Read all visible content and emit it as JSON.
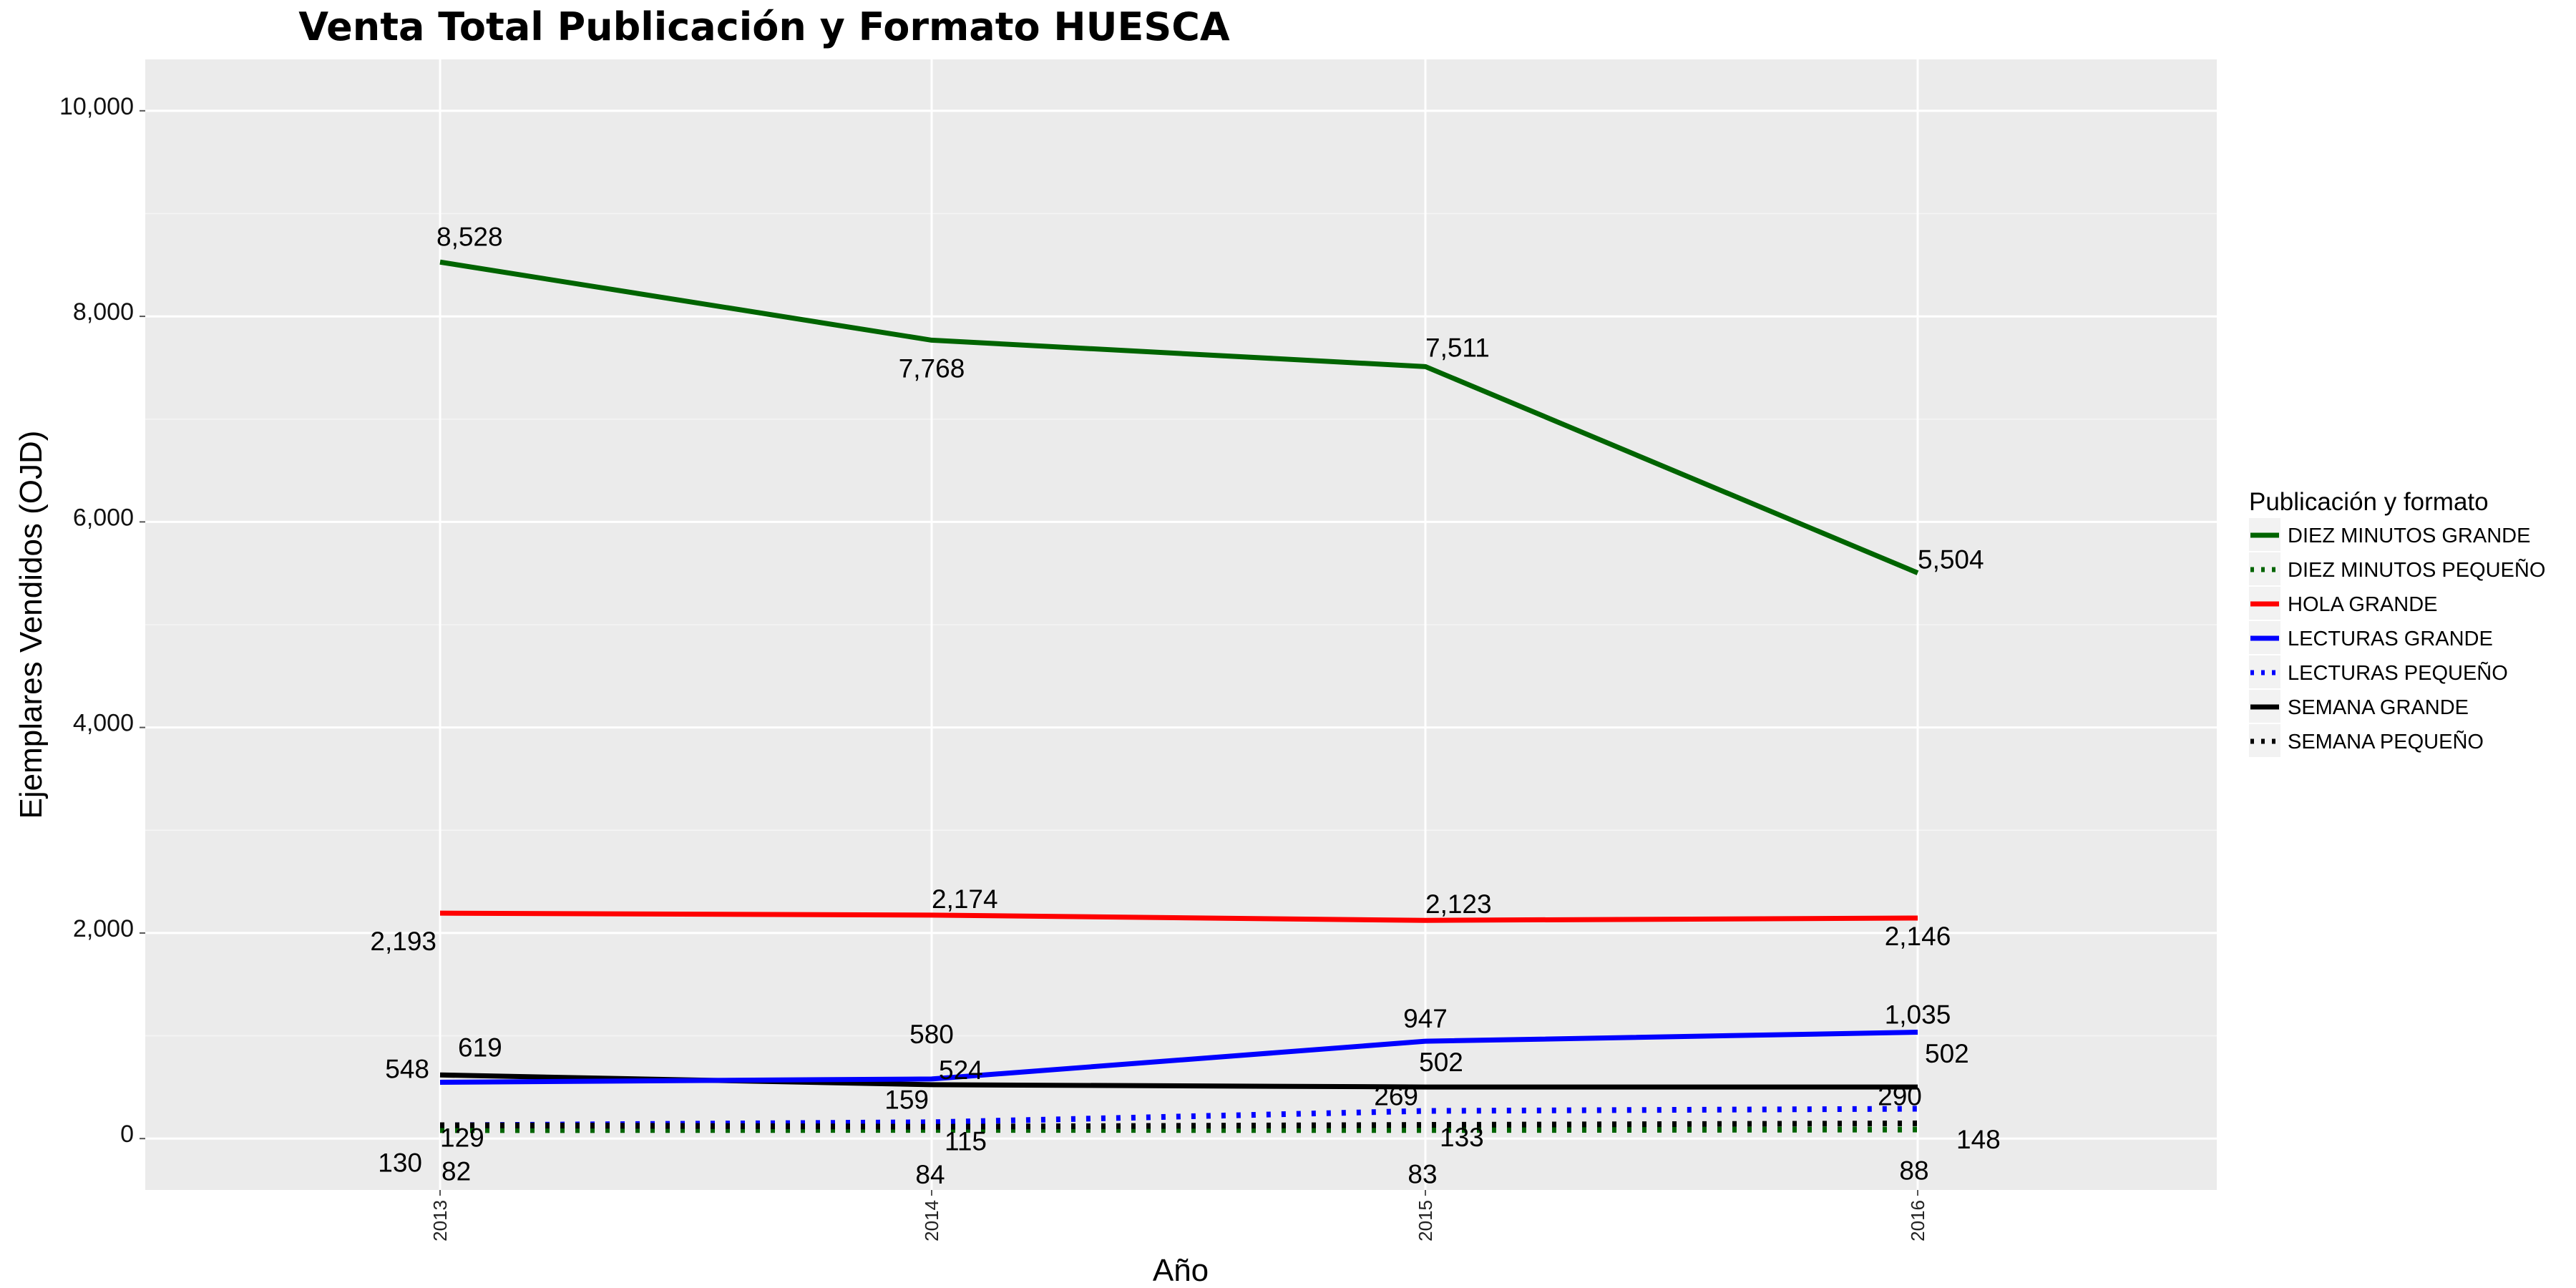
{
  "chart_data": {
    "type": "line",
    "title": "Venta Total Publicación y Formato  HUESCA",
    "xlabel": "Año",
    "ylabel": "Ejemplares Vendidos (OJD)",
    "x": [
      "2013",
      "2014",
      "2015",
      "2016"
    ],
    "ylim": [
      -500,
      10500
    ],
    "yticks": [
      0,
      2000,
      4000,
      6000,
      8000,
      10000
    ],
    "ytick_labels": [
      "0",
      "2,000",
      "4,000",
      "6,000",
      "8,000",
      "10,000"
    ],
    "grid": true,
    "legend_position": "right",
    "legend_title": "Publicación y formato",
    "series": [
      {
        "name": "DIEZ MINUTOS GRANDE",
        "color": "#006400",
        "dash": "solid",
        "values": [
          8528,
          7768,
          7511,
          5504
        ],
        "labels": [
          "8,528",
          "7,768",
          "7,511",
          "5,504"
        ]
      },
      {
        "name": "DIEZ MINUTOS PEQUEÑO",
        "color": "#006400",
        "dash": "dotted",
        "values": [
          82,
          84,
          83,
          88
        ],
        "labels": [
          "82",
          "84",
          "83",
          "88"
        ]
      },
      {
        "name": "HOLA GRANDE",
        "color": "#ff0000",
        "dash": "solid",
        "values": [
          2193,
          2174,
          2123,
          2146
        ],
        "labels": [
          "2,193",
          "2,174",
          "2,123",
          "2,146"
        ]
      },
      {
        "name": "LECTURAS GRANDE",
        "color": "#0000ff",
        "dash": "solid",
        "values": [
          548,
          580,
          947,
          1035
        ],
        "labels": [
          "548",
          "580",
          "947",
          "1,035"
        ]
      },
      {
        "name": "LECTURAS PEQUEÑO",
        "color": "#0000ff",
        "dash": "dotted",
        "values": [
          129,
          159,
          269,
          290
        ],
        "labels": [
          "129",
          "159",
          "269",
          "290"
        ]
      },
      {
        "name": "SEMANA GRANDE",
        "color": "#000000",
        "dash": "solid",
        "values": [
          619,
          524,
          502,
          502
        ],
        "labels": [
          "619",
          "524",
          "502",
          "502"
        ]
      },
      {
        "name": "SEMANA PEQUEÑO",
        "color": "#000000",
        "dash": "dotted",
        "values": [
          130,
          115,
          133,
          148
        ],
        "labels": [
          "130",
          "115",
          "133",
          "148"
        ]
      }
    ]
  }
}
